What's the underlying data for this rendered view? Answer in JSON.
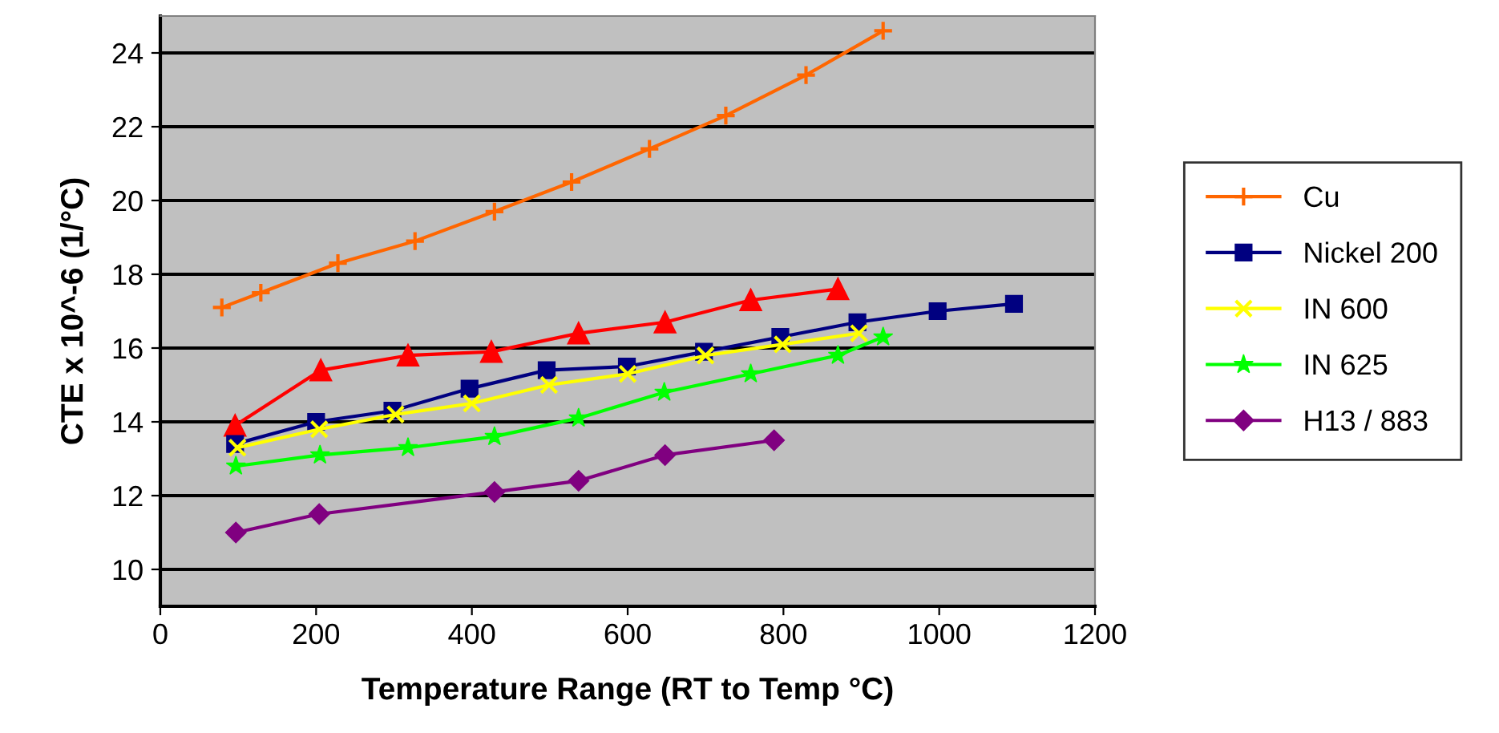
{
  "chart_data": {
    "type": "line",
    "xlabel": "Temperature Range (RT to Temp °C)",
    "ylabel": "CTE x 10^-6 (1/°C)",
    "xlim": [
      0,
      1200
    ],
    "xticks": [
      0,
      200,
      400,
      600,
      800,
      1000,
      1200
    ],
    "ylim": [
      9,
      25
    ],
    "yticks": [
      10,
      12,
      14,
      16,
      18,
      20,
      22,
      24
    ],
    "grid": "y",
    "legend": "right",
    "series": [
      {
        "name": "Cu",
        "color": "#ff6600",
        "marker": "cross",
        "x": [
          79,
          129,
          228,
          327,
          429,
          528,
          628,
          726,
          829,
          928
        ],
        "values": [
          17.1,
          17.5,
          18.3,
          18.9,
          19.7,
          20.5,
          21.4,
          22.3,
          23.4,
          24.6
        ]
      },
      {
        "color": "#ff0000",
        "marker": "triangle",
        "x": [
          96,
          206,
          318,
          425,
          537,
          648,
          758,
          870
        ],
        "values": [
          13.9,
          15.4,
          15.8,
          15.9,
          16.4,
          16.7,
          17.3,
          17.6
        ]
      },
      {
        "name": "Nickel 200",
        "color": "#000080",
        "marker": "square",
        "x": [
          96,
          200,
          298,
          397,
          496,
          599,
          698,
          796,
          895,
          998,
          1096
        ],
        "values": [
          13.4,
          14.0,
          14.3,
          14.9,
          15.4,
          15.5,
          15.9,
          16.3,
          16.7,
          17.0,
          17.2
        ]
      },
      {
        "name": "IN 600",
        "color": "#ffff00",
        "marker": "x",
        "x": [
          99,
          204,
          302,
          400,
          499,
          600,
          700,
          799,
          897
        ],
        "values": [
          13.3,
          13.8,
          14.2,
          14.5,
          15.0,
          15.3,
          15.8,
          16.1,
          16.4
        ]
      },
      {
        "name": "IN 625",
        "color": "#00ff00",
        "marker": "star",
        "x": [
          97,
          205,
          318,
          429,
          537,
          647,
          758,
          870,
          928
        ],
        "values": [
          12.8,
          13.1,
          13.3,
          13.6,
          14.1,
          14.8,
          15.3,
          15.8,
          16.3
        ]
      },
      {
        "name": "H13 / 883",
        "color": "#800080",
        "marker": "diamond",
        "x": [
          97,
          204,
          429,
          537,
          648,
          788
        ],
        "values": [
          11.0,
          11.5,
          12.1,
          12.4,
          13.1,
          13.5
        ]
      }
    ]
  }
}
